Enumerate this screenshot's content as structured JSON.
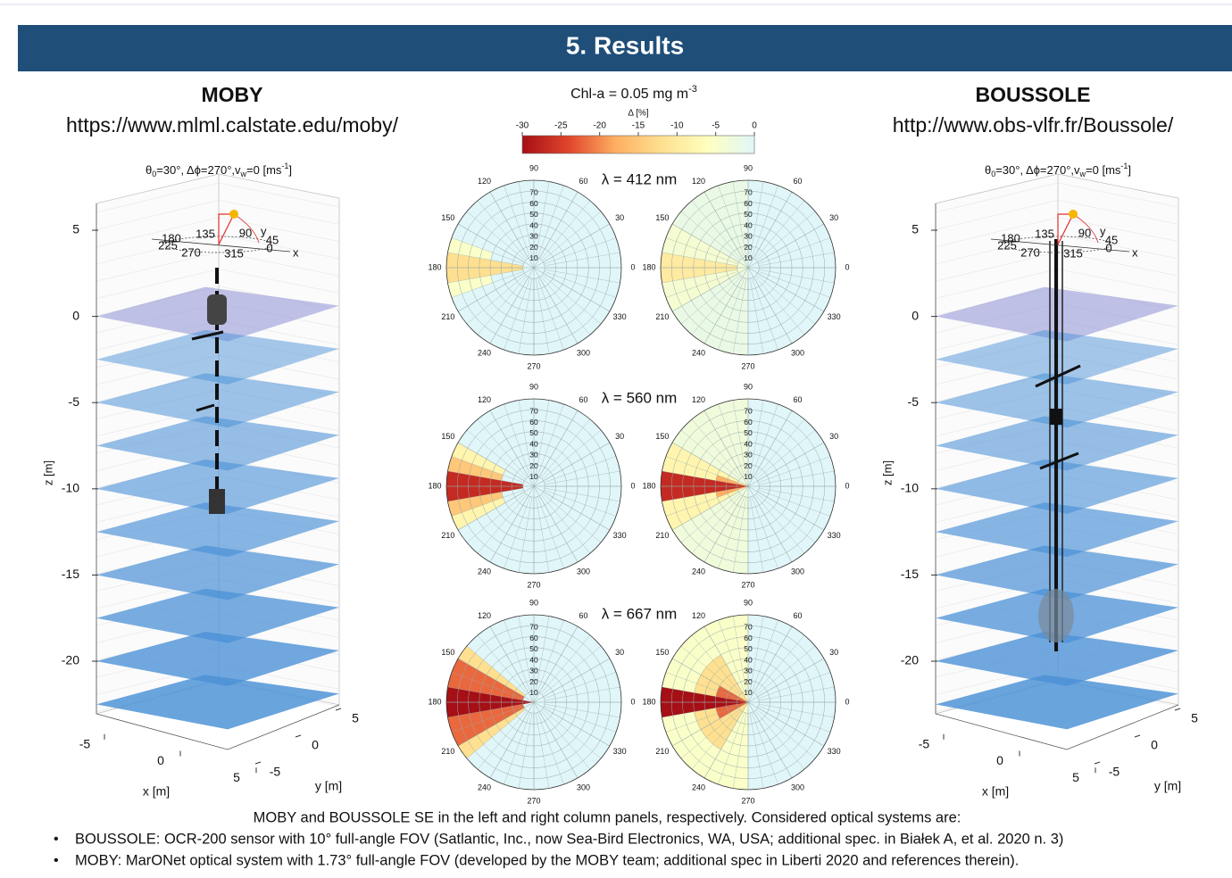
{
  "header": {
    "title": "5. Results"
  },
  "left_plot": {
    "title": "MOBY",
    "url": "https://www.mlml.calstate.edu/moby/",
    "view_title": [
      "θ",
      "0",
      "=30°, Δϕ=270°,v",
      "w",
      "=0 [ms",
      "-1",
      "]"
    ],
    "zlim": [
      -23,
      6
    ],
    "zticks": [
      5,
      0,
      -5,
      -10,
      -15,
      -20
    ],
    "xlim": [
      -6,
      6
    ],
    "xticks": [
      -5,
      0,
      5
    ],
    "ylim": [
      -6,
      6
    ],
    "yticks": [
      5,
      0,
      -5
    ],
    "xlabel": "x [m]",
    "ylabel": "y [m]",
    "zlabel": "z [m]",
    "compass_angles": [
      180,
      135,
      90,
      45,
      225,
      270,
      315,
      0
    ],
    "compass_axes": [
      "y",
      "x"
    ]
  },
  "right_plot": {
    "title": "BOUSSOLE",
    "url": "http://www.obs-vlfr.fr/Boussole/",
    "view_title": [
      "θ",
      "0",
      "=30°, Δϕ=270°,v",
      "w",
      "=0 [ms",
      "-1",
      "]"
    ],
    "zlim": [
      -23,
      6
    ],
    "zticks": [
      5,
      0,
      -5,
      -10,
      -15,
      -20
    ],
    "xlim": [
      -6,
      6
    ],
    "xticks": [
      -5,
      0,
      5
    ],
    "ylim": [
      -6,
      6
    ],
    "yticks": [
      5,
      0,
      -5
    ],
    "xlabel": "x [m]",
    "ylabel": "y [m]",
    "zlabel": "z [m]",
    "compass_angles": [
      180,
      135,
      90,
      45,
      225,
      270,
      315,
      0
    ],
    "compass_axes": [
      "y",
      "x"
    ]
  },
  "polar": {
    "condition": [
      "Chl-a = 0.05 mg m",
      "-3"
    ],
    "colorbar_label": "Δ [%]",
    "clim": [
      -30,
      0
    ],
    "colorbar_ticks": [
      -30,
      -25,
      -20,
      -15,
      -10,
      -5,
      0
    ],
    "colormap": [
      "#a50f15",
      "#e0452c",
      "#fdae61",
      "#fee090",
      "#ffffbf",
      "#e0f6f8"
    ],
    "rlim": [
      0,
      80
    ],
    "radial_ticks": [
      10,
      20,
      30,
      40,
      50,
      60,
      70
    ],
    "angle_ticks": [
      0,
      30,
      60,
      90,
      120,
      150,
      180,
      210,
      240,
      270,
      300,
      330
    ],
    "panels": [
      {
        "wavelength": "λ = 412 nm",
        "left": [
          {
            "theta": [
              160,
              170
            ],
            "r": [
              40,
              80
            ],
            "value": -5
          },
          {
            "theta": [
              190,
              200
            ],
            "r": [
              40,
              80
            ],
            "value": -5
          },
          {
            "theta": [
              170,
              190
            ],
            "r": [
              10,
              80
            ],
            "value": -12
          }
        ],
        "right": [
          {
            "theta": [
              90,
              270
            ],
            "r": [
              0,
              80
            ],
            "value": -2
          },
          {
            "theta": [
              150,
              170
            ],
            "r": [
              0,
              80
            ],
            "value": -4
          },
          {
            "theta": [
              190,
              210
            ],
            "r": [
              0,
              80
            ],
            "value": -4
          },
          {
            "theta": [
              170,
              190
            ],
            "r": [
              10,
              80
            ],
            "value": -10
          }
        ]
      },
      {
        "wavelength": "λ = 560 nm",
        "left": [
          {
            "theta": [
              150,
              210
            ],
            "r": [
              30,
              80
            ],
            "value": -8
          },
          {
            "theta": [
              160,
              170
            ],
            "r": [
              30,
              80
            ],
            "value": -15
          },
          {
            "theta": [
              190,
              200
            ],
            "r": [
              30,
              80
            ],
            "value": -15
          },
          {
            "theta": [
              170,
              190
            ],
            "r": [
              10,
              80
            ],
            "value": -27
          }
        ],
        "right": [
          {
            "theta": [
              90,
              270
            ],
            "r": [
              0,
              80
            ],
            "value": -3
          },
          {
            "theta": [
              150,
              210
            ],
            "r": [
              10,
              80
            ],
            "value": -8
          },
          {
            "theta": [
              160,
              200
            ],
            "r": [
              0,
              30
            ],
            "value": -18
          },
          {
            "theta": [
              170,
              190
            ],
            "r": [
              0,
              80
            ],
            "value": -27
          }
        ]
      },
      {
        "wavelength": "λ = 667 nm",
        "left": [
          {
            "theta": [
              140,
              220
            ],
            "r": [
              10,
              80
            ],
            "value": -12
          },
          {
            "theta": [
              150,
              210
            ],
            "r": [
              10,
              80
            ],
            "value": -22
          },
          {
            "theta": [
              170,
              190
            ],
            "r": [
              0,
              80
            ],
            "value": -30
          }
        ],
        "right": [
          {
            "theta": [
              90,
              270
            ],
            "r": [
              0,
              80
            ],
            "value": -5
          },
          {
            "theta": [
              120,
              240
            ],
            "r": [
              0,
              50
            ],
            "value": -12
          },
          {
            "theta": [
              150,
              210
            ],
            "r": [
              0,
              30
            ],
            "value": -22
          },
          {
            "theta": [
              170,
              190
            ],
            "r": [
              0,
              80
            ],
            "value": -30
          }
        ]
      }
    ]
  },
  "caption": {
    "intro": "MOBY and BOUSSOLE  SE in the left and right column panels, respectively. Considered optical systems are:",
    "bullets": [
      "BOUSSOLE: OCR-200 sensor with 10° full-angle FOV (Satlantic, Inc., now Sea-Bird Electronics, WA, USA; additional spec. in Białek A, et al. 2020 n. 3)",
      "MOBY: MarONet optical system with 1.73° full-angle FOV (developed by the MOBY team; additional spec in Liberti 2020 and references therein)."
    ]
  }
}
